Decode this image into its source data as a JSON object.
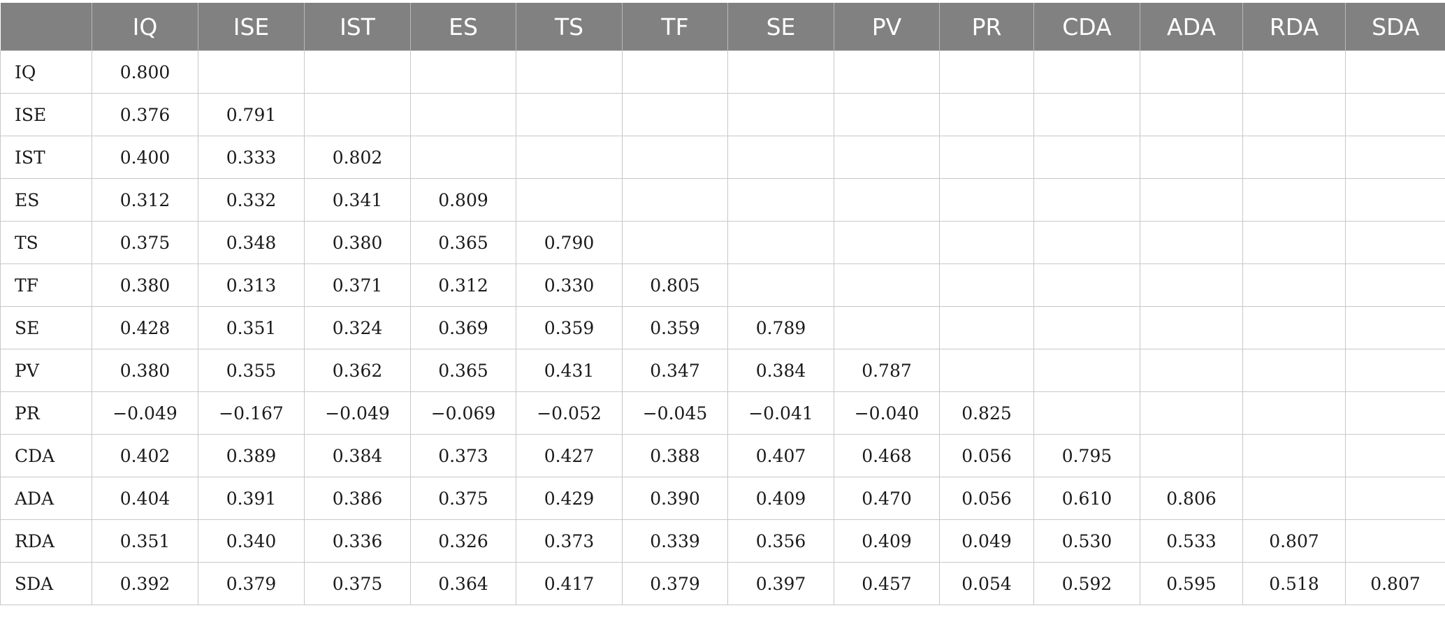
{
  "table": {
    "columns": [
      "",
      "IQ",
      "ISE",
      "IST",
      "ES",
      "TS",
      "TF",
      "SE",
      "PV",
      "PR",
      "CDA",
      "ADA",
      "RDA",
      "SDA"
    ],
    "rows": [
      [
        "IQ",
        "0.800",
        "",
        "",
        "",
        "",
        "",
        "",
        "",
        "",
        "",
        "",
        "",
        ""
      ],
      [
        "ISE",
        "0.376",
        "0.791",
        "",
        "",
        "",
        "",
        "",
        "",
        "",
        "",
        "",
        "",
        ""
      ],
      [
        "IST",
        "0.400",
        "0.333",
        "0.802",
        "",
        "",
        "",
        "",
        "",
        "",
        "",
        "",
        "",
        ""
      ],
      [
        "ES",
        "0.312",
        "0.332",
        "0.341",
        "0.809",
        "",
        "",
        "",
        "",
        "",
        "",
        "",
        "",
        ""
      ],
      [
        "TS",
        "0.375",
        "0.348",
        "0.380",
        "0.365",
        "0.790",
        "",
        "",
        "",
        "",
        "",
        "",
        "",
        ""
      ],
      [
        "TF",
        "0.380",
        "0.313",
        "0.371",
        "0.312",
        "0.330",
        "0.805",
        "",
        "",
        "",
        "",
        "",
        "",
        ""
      ],
      [
        "SE",
        "0.428",
        "0.351",
        "0.324",
        "0.369",
        "0.359",
        "0.359",
        "0.789",
        "",
        "",
        "",
        "",
        "",
        ""
      ],
      [
        "PV",
        "0.380",
        "0.355",
        "0.362",
        "0.365",
        "0.431",
        "0.347",
        "0.384",
        "0.787",
        "",
        "",
        "",
        "",
        ""
      ],
      [
        "PR",
        "−0.049",
        "−0.167",
        "−0.049",
        "−0.069",
        "−0.052",
        "−0.045",
        "−0.041",
        "−0.040",
        "0.825",
        "",
        "",
        "",
        ""
      ],
      [
        "CDA",
        "0.402",
        "0.389",
        "0.384",
        "0.373",
        "0.427",
        "0.388",
        "0.407",
        "0.468",
        "0.056",
        "0.795",
        "",
        "",
        ""
      ],
      [
        "ADA",
        "0.404",
        "0.391",
        "0.386",
        "0.375",
        "0.429",
        "0.390",
        "0.409",
        "0.470",
        "0.056",
        "0.610",
        "0.806",
        "",
        ""
      ],
      [
        "RDA",
        "0.351",
        "0.340",
        "0.336",
        "0.326",
        "0.373",
        "0.339",
        "0.356",
        "0.409",
        "0.049",
        "0.530",
        "0.533",
        "0.807",
        ""
      ],
      [
        "SDA",
        "0.392",
        "0.379",
        "0.375",
        "0.364",
        "0.417",
        "0.379",
        "0.397",
        "0.457",
        "0.054",
        "0.592",
        "0.595",
        "0.518",
        "0.807"
      ]
    ]
  },
  "colors": {
    "header_background": "#818181",
    "header_text": "#ffffff",
    "grid_line": "#c8c8c8"
  }
}
